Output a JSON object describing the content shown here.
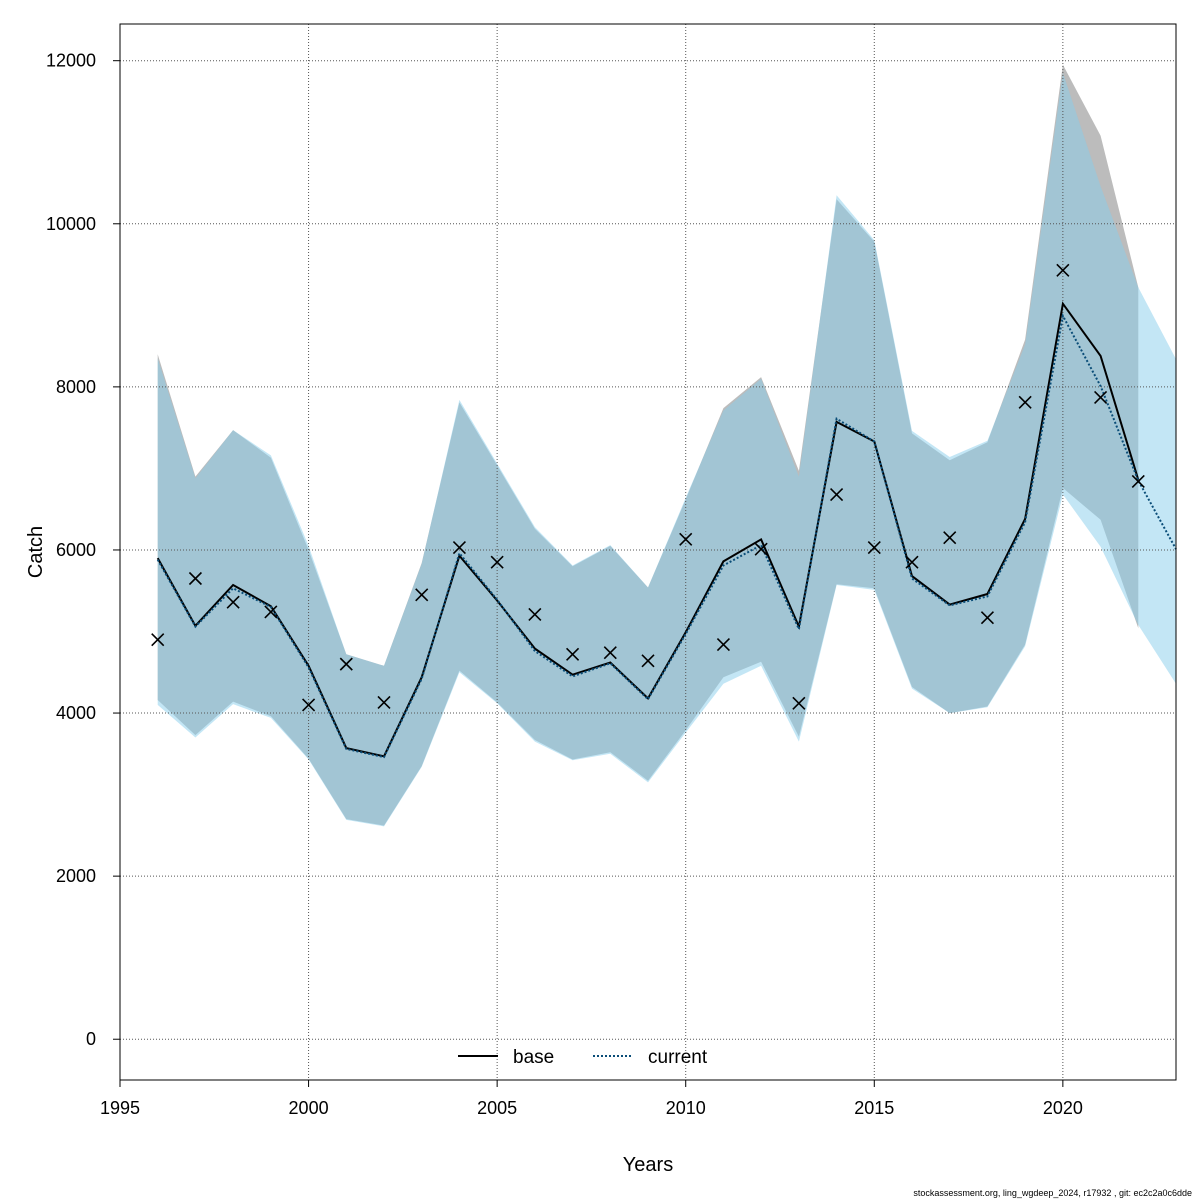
{
  "chart_data": {
    "type": "line",
    "xlabel": "Years",
    "ylabel": "Catch",
    "xlim": [
      1995,
      2023
    ],
    "ylim": [
      -500,
      12450
    ],
    "xticks": [
      1995,
      2000,
      2005,
      2010,
      2015,
      2020
    ],
    "yticks": [
      0,
      2000,
      4000,
      6000,
      8000,
      10000,
      12000
    ],
    "grid": true,
    "legend_position": "bottom-center",
    "colors": {
      "base_line": "#000000",
      "current_line": "#0a4d78",
      "base_band": "#8f8f8f",
      "current_band": "#87ceeb",
      "grid": "#555555",
      "observed_marker": "#000000"
    },
    "observed": {
      "name": "",
      "x": [
        1996,
        1997,
        1998,
        1999,
        2000,
        2001,
        2002,
        2003,
        2004,
        2005,
        2006,
        2007,
        2008,
        2009,
        2010,
        2011,
        2012,
        2013,
        2014,
        2015,
        2016,
        2017,
        2018,
        2019,
        2020,
        2021,
        2022
      ],
      "y": [
        4900,
        5650,
        5360,
        5240,
        4100,
        4600,
        4130,
        5450,
        6030,
        5850,
        5210,
        4720,
        4740,
        4640,
        6130,
        4840,
        6010,
        4120,
        6680,
        6030,
        5850,
        6150,
        5170,
        7810,
        9430,
        7870,
        6840
      ]
    },
    "series": [
      {
        "name": "base",
        "style": "solid",
        "x": [
          1996,
          1997,
          1998,
          1999,
          2000,
          2001,
          2002,
          2003,
          2004,
          2005,
          2006,
          2007,
          2008,
          2009,
          2010,
          2011,
          2012,
          2013,
          2014,
          2015,
          2016,
          2017,
          2018,
          2019,
          2020,
          2021,
          2022
        ],
        "y": [
          5900,
          5070,
          5570,
          5310,
          4580,
          3570,
          3470,
          4440,
          5930,
          5380,
          4790,
          4470,
          4620,
          4180,
          4990,
          5860,
          6130,
          5060,
          7570,
          7330,
          5680,
          5330,
          5460,
          6380,
          9020,
          8380,
          6860
        ],
        "lower": [
          4160,
          3730,
          4140,
          3960,
          3440,
          2700,
          2620,
          3350,
          4520,
          4130,
          3670,
          3430,
          3520,
          3170,
          3790,
          4440,
          4630,
          3710,
          5580,
          5530,
          4320,
          4000,
          4080,
          4840,
          6760,
          6370,
          5040
        ],
        "upper": [
          8400,
          6900,
          7470,
          7130,
          6000,
          4720,
          4580,
          5840,
          7810,
          7040,
          6260,
          5800,
          6050,
          5540,
          6620,
          7740,
          8120,
          6970,
          10300,
          9780,
          7430,
          7100,
          7320,
          8580,
          11950,
          11080,
          9220
        ]
      },
      {
        "name": "current",
        "style": "dotted",
        "x": [
          1996,
          1997,
          1998,
          1999,
          2000,
          2001,
          2002,
          2003,
          2004,
          2005,
          2006,
          2007,
          2008,
          2009,
          2010,
          2011,
          2012,
          2013,
          2014,
          2015,
          2016,
          2017,
          2018,
          2019,
          2020,
          2021,
          2022,
          2023
        ],
        "y": [
          5880,
          5060,
          5530,
          5300,
          4560,
          3560,
          3460,
          4420,
          5960,
          5390,
          4760,
          4450,
          4610,
          4170,
          4970,
          5810,
          6060,
          5030,
          7610,
          7330,
          5650,
          5320,
          5430,
          6340,
          8870,
          8010,
          6850,
          6010
        ],
        "lower": [
          4100,
          3700,
          4110,
          3940,
          3430,
          2690,
          2610,
          3340,
          4500,
          4120,
          3650,
          3420,
          3500,
          3150,
          3760,
          4360,
          4580,
          3650,
          5570,
          5510,
          4300,
          4000,
          4070,
          4820,
          6680,
          6040,
          5080,
          4360
        ],
        "upper": [
          8350,
          6880,
          7470,
          7160,
          6050,
          4720,
          4580,
          5830,
          7840,
          7060,
          6280,
          5810,
          6060,
          5540,
          6640,
          7710,
          8100,
          6900,
          10350,
          9800,
          7460,
          7140,
          7340,
          8520,
          11850,
          10460,
          9220,
          8340
        ]
      }
    ],
    "footer": "stockassessment.org, ling_wgdeep_2024, r17932 , git: ec2c2a0c6dde"
  }
}
